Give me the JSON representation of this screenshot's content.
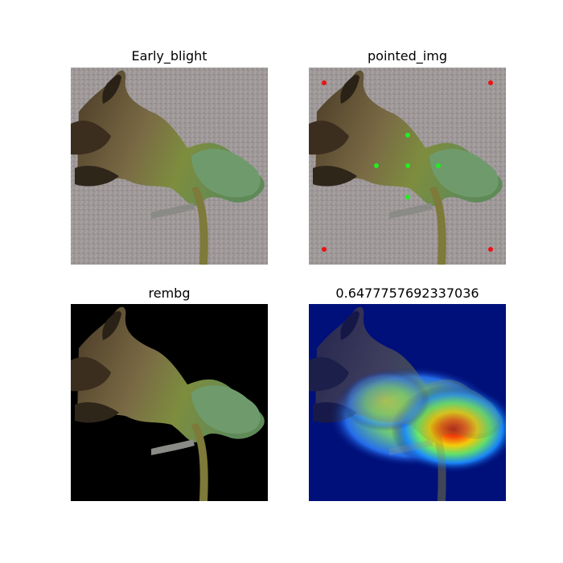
{
  "figure": {
    "panels": [
      {
        "title": "Early_blight",
        "content": "photo of a tomato leaf with early blight on a grey textured background"
      },
      {
        "title": "pointed_img",
        "content": "same leaf photo with point prompts",
        "points": {
          "green": 5,
          "red": 4
        }
      },
      {
        "title": "rembg",
        "content": "leaf with background removed to black"
      },
      {
        "title": "0.6477757692337036",
        "content": "heatmap overlay on leaf"
      }
    ],
    "colors": {
      "point_positive": "#22ee22",
      "point_negative": "#ee1111",
      "background_photo": "#9e9898",
      "background_removed": "#000000",
      "heatmap_base": "#00107a"
    }
  }
}
